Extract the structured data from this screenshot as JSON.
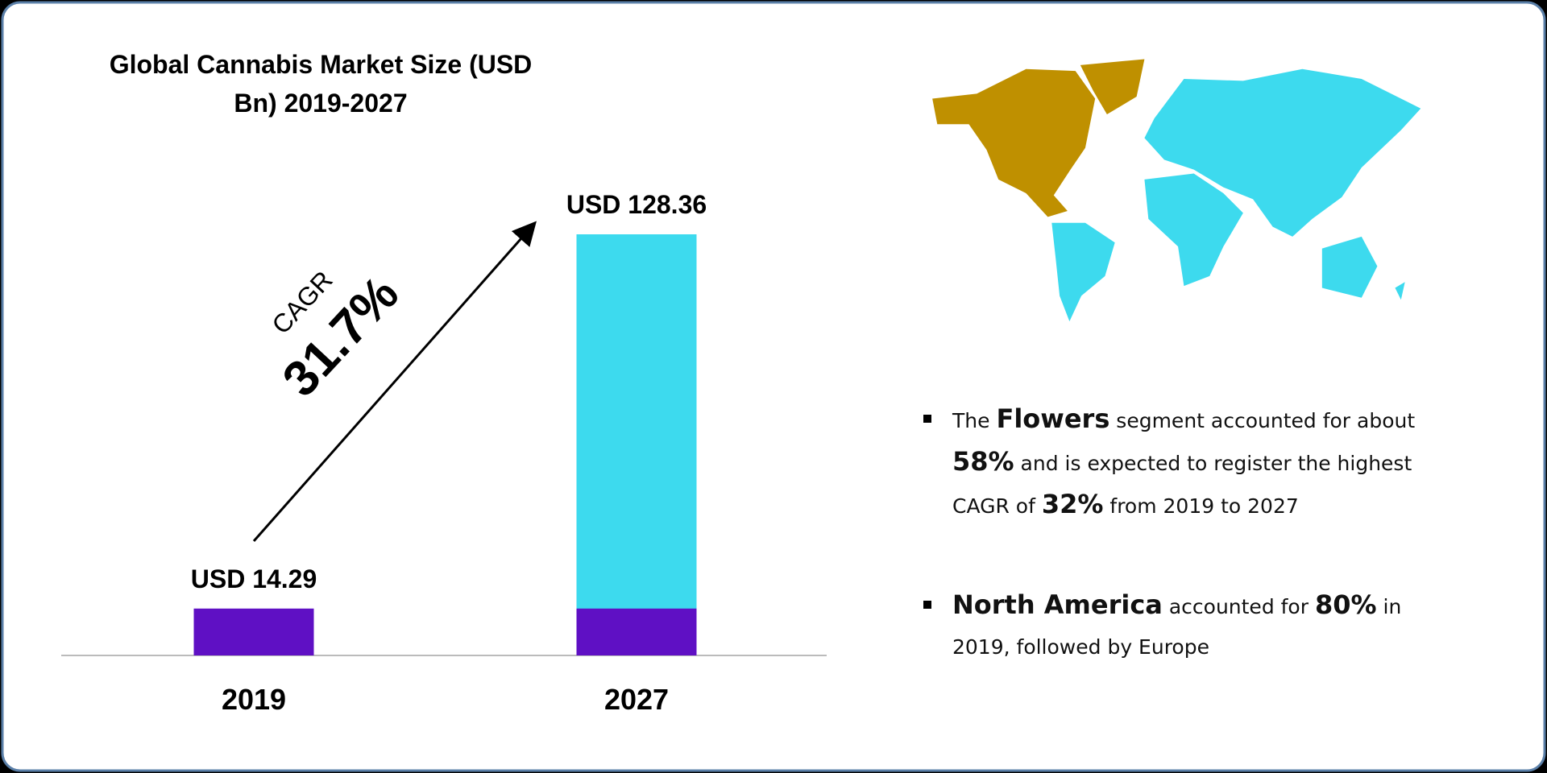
{
  "chart_data": {
    "type": "bar",
    "title": "Global Cannabis Market Size (USD Bn) 2019-2027",
    "categories": [
      "2019",
      "2027"
    ],
    "values": [
      14.29,
      128.36
    ],
    "value_labels": [
      "USD 14.29",
      "USD 128.36"
    ],
    "colors": [
      "#5f10c4",
      "#3ddaee"
    ],
    "cagr_label": "CAGR",
    "cagr_value": "31.7%"
  },
  "highlights": [
    [
      {
        "text": "The ",
        "bold": false
      },
      {
        "text": "Flowers",
        "bold": true
      },
      {
        "text": " segment accounted for about ",
        "bold": false
      },
      {
        "text": "58%",
        "bold": true
      },
      {
        "text": " and is expected to register the highest CAGR of ",
        "bold": false
      },
      {
        "text": "32%",
        "bold": true
      },
      {
        "text": " from 2019 to 2027",
        "bold": false
      }
    ],
    [
      {
        "text": "North America",
        "bold": true
      },
      {
        "text": " accounted for ",
        "bold": false
      },
      {
        "text": "80%",
        "bold": true
      },
      {
        "text": " in 2019, followed by Europe",
        "bold": false
      }
    ]
  ]
}
